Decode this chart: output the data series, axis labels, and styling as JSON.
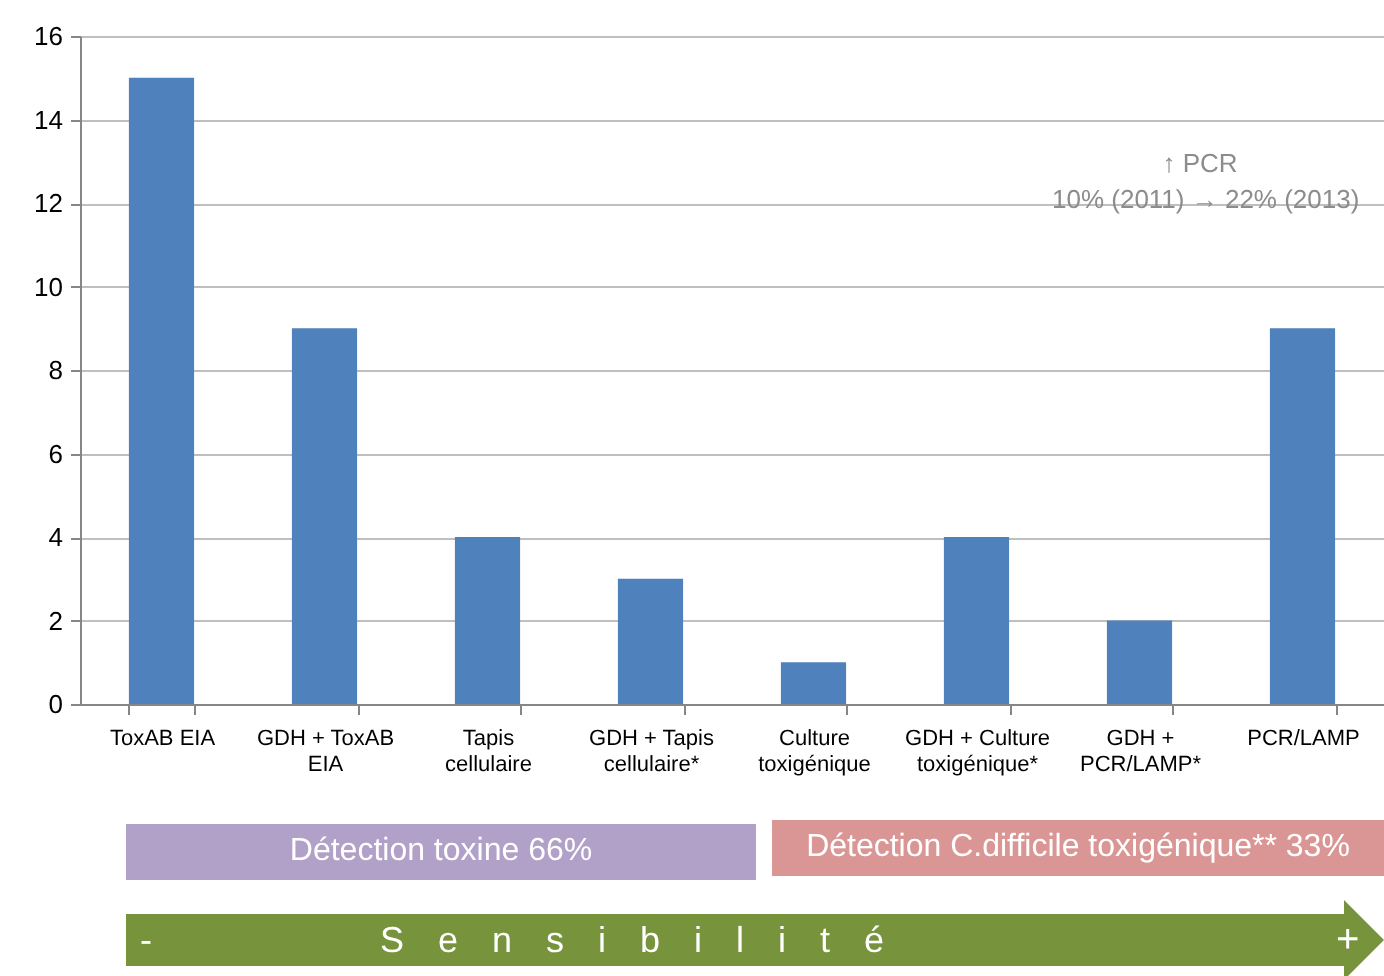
{
  "chart_data": {
    "type": "bar",
    "categories": [
      "ToxAB EIA",
      "GDH + ToxAB EIA",
      "Tapis cellulaire",
      "GDH + Tapis cellulaire*",
      "Culture toxigénique",
      "GDH + Culture toxigénique*",
      "GDH + PCR/LAMP*",
      "PCR/LAMP"
    ],
    "values": [
      15,
      9,
      4,
      3,
      1,
      4,
      2,
      9
    ],
    "color": "#4f81bd",
    "ylim": [
      0,
      16
    ],
    "yticks": [
      0,
      2,
      4,
      6,
      8,
      10,
      12,
      14,
      16
    ],
    "grid": "y",
    "annotations": [
      "↑ PCR",
      "10% (2011) → 22% (2013)",
      "Détection toxine 66%",
      "Détection C.difficile toxigénique** 33%",
      "-",
      "Sensibilité",
      "+"
    ]
  }
}
